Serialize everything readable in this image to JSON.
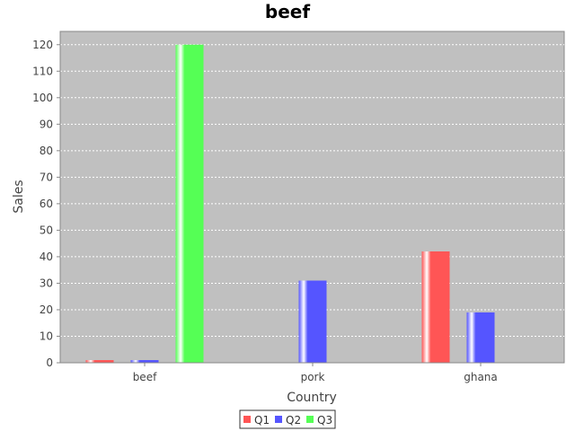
{
  "chart_data": {
    "type": "bar",
    "title": "beef",
    "xlabel": "Country",
    "ylabel": "Sales",
    "categories": [
      "beef",
      "pork",
      "ghana"
    ],
    "series": [
      {
        "name": "Q1",
        "color": "#ff5555",
        "values": [
          1,
          0,
          42
        ]
      },
      {
        "name": "Q2",
        "color": "#5555ff",
        "values": [
          1,
          31,
          19
        ]
      },
      {
        "name": "Q3",
        "color": "#55ff55",
        "values": [
          120,
          0,
          0
        ]
      }
    ],
    "ylim": [
      0,
      125
    ],
    "yticks": [
      0,
      10,
      20,
      30,
      40,
      50,
      60,
      70,
      80,
      90,
      100,
      110,
      120
    ],
    "grid": true,
    "legend": "bottom",
    "plot_background": "#c0c0c0"
  }
}
